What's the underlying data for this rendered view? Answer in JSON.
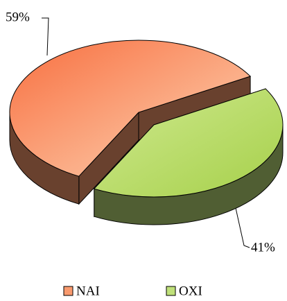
{
  "chart_data": {
    "type": "pie",
    "categories": [
      "NAI",
      "OXI"
    ],
    "values": [
      59,
      41
    ],
    "value_labels": [
      "59%",
      "41%"
    ],
    "colors": [
      "#f99a6e",
      "#bfe07a"
    ],
    "legend": "bottom"
  }
}
